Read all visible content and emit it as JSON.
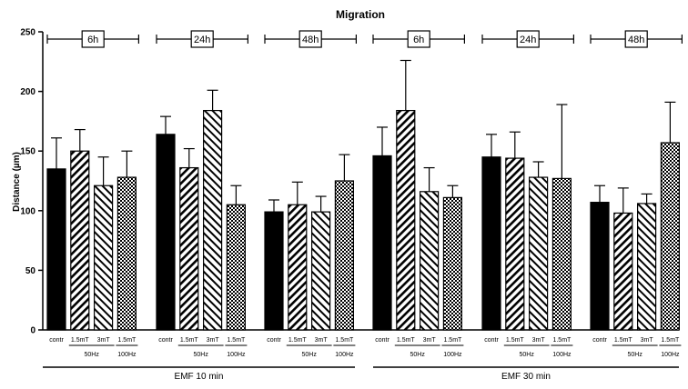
{
  "chart_data": {
    "type": "bar",
    "title": "Migration",
    "ylabel": "Distance (µm)",
    "xlabel": "",
    "ylim": [
      0,
      250
    ],
    "yticks": [
      0,
      50,
      100,
      150,
      200,
      250
    ],
    "bar_labels": [
      "contr",
      "1.5mT",
      "3mT",
      "1.5mT"
    ],
    "freq_labels": [
      "50Hz",
      "100Hz"
    ],
    "exposure_groups": [
      "EMF 10 min",
      "EMF 30 min"
    ],
    "timepoints": [
      "6h",
      "24h",
      "48h",
      "6h",
      "24h",
      "48h"
    ],
    "series_patterns": [
      "solid",
      "diagonal-down",
      "diagonal-up",
      "checker"
    ],
    "groups": [
      {
        "exposure": "EMF 10 min",
        "time": "6h",
        "values": [
          135,
          150,
          121,
          128
        ],
        "errors": [
          26,
          18,
          24,
          22
        ]
      },
      {
        "exposure": "EMF 10 min",
        "time": "24h",
        "values": [
          164,
          136,
          184,
          105
        ],
        "errors": [
          15,
          16,
          17,
          16
        ]
      },
      {
        "exposure": "EMF 10 min",
        "time": "48h",
        "values": [
          99,
          105,
          99,
          125
        ],
        "errors": [
          10,
          19,
          13,
          22
        ]
      },
      {
        "exposure": "EMF 30 min",
        "time": "6h",
        "values": [
          146,
          184,
          116,
          111
        ],
        "errors": [
          24,
          42,
          20,
          10
        ]
      },
      {
        "exposure": "EMF 30 min",
        "time": "24h",
        "values": [
          145,
          144,
          128,
          127
        ],
        "errors": [
          19,
          22,
          13,
          62
        ]
      },
      {
        "exposure": "EMF 30 min",
        "time": "48h",
        "values": [
          107,
          98,
          106,
          157
        ],
        "errors": [
          14,
          21,
          8,
          34
        ]
      }
    ]
  }
}
